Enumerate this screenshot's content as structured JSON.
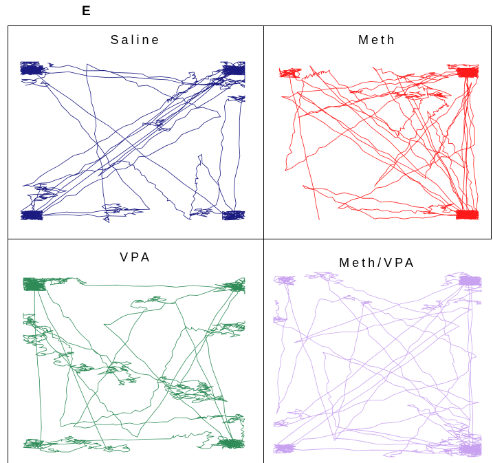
{
  "figure": {
    "panel_letter": "E",
    "panels": [
      {
        "title": "Saline",
        "color": "#1a1a80"
      },
      {
        "title": "Meth",
        "color": "#ff1a1a"
      },
      {
        "title": "VPA",
        "color": "#2e8b57"
      },
      {
        "title": "Meth/VPA",
        "color": "#c8a2f0"
      }
    ]
  }
}
